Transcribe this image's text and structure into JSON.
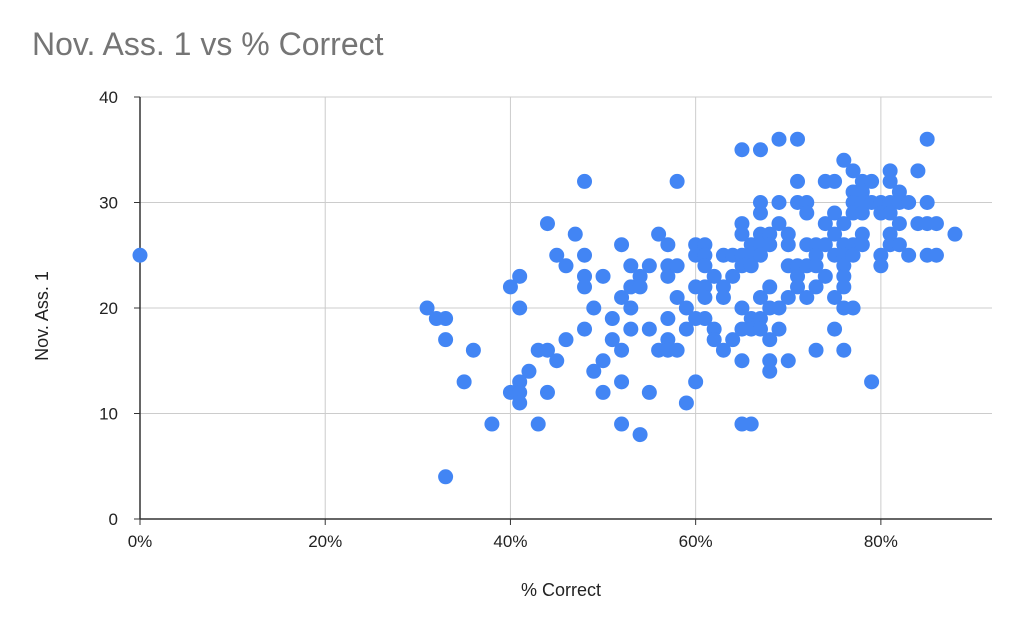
{
  "chart_data": {
    "type": "scatter",
    "title": "Nov. Ass. 1 vs % Correct",
    "xlabel": "% Correct",
    "ylabel": "Nov. Ass. 1",
    "xlim": [
      0,
      0.92
    ],
    "ylim": [
      0,
      40
    ],
    "x_ticks": [
      {
        "value": 0,
        "label": "0%"
      },
      {
        "value": 0.2,
        "label": "20%"
      },
      {
        "value": 0.4,
        "label": "40%"
      },
      {
        "value": 0.6,
        "label": "60%"
      },
      {
        "value": 0.8,
        "label": "80%"
      }
    ],
    "y_ticks": [
      {
        "value": 0,
        "label": "0"
      },
      {
        "value": 10,
        "label": "10"
      },
      {
        "value": 20,
        "label": "20"
      },
      {
        "value": 30,
        "label": "30"
      },
      {
        "value": 40,
        "label": "40"
      }
    ],
    "grid": true,
    "legend": "none",
    "point_color": "#4285f4",
    "points": [
      [
        0,
        25
      ],
      [
        0.31,
        20
      ],
      [
        0.32,
        19
      ],
      [
        0.33,
        19
      ],
      [
        0.33,
        17
      ],
      [
        0.33,
        4
      ],
      [
        0.35,
        13
      ],
      [
        0.36,
        16
      ],
      [
        0.38,
        9
      ],
      [
        0.4,
        22
      ],
      [
        0.4,
        12
      ],
      [
        0.41,
        23
      ],
      [
        0.41,
        20
      ],
      [
        0.41,
        13
      ],
      [
        0.41,
        12
      ],
      [
        0.41,
        11
      ],
      [
        0.42,
        14
      ],
      [
        0.43,
        16
      ],
      [
        0.43,
        9
      ],
      [
        0.44,
        28
      ],
      [
        0.44,
        16
      ],
      [
        0.44,
        12
      ],
      [
        0.45,
        25
      ],
      [
        0.45,
        15
      ],
      [
        0.46,
        24
      ],
      [
        0.46,
        17
      ],
      [
        0.47,
        27
      ],
      [
        0.48,
        32
      ],
      [
        0.48,
        25
      ],
      [
        0.48,
        23
      ],
      [
        0.48,
        22
      ],
      [
        0.48,
        18
      ],
      [
        0.49,
        20
      ],
      [
        0.49,
        14
      ],
      [
        0.5,
        23
      ],
      [
        0.5,
        15
      ],
      [
        0.5,
        12
      ],
      [
        0.51,
        19
      ],
      [
        0.51,
        17
      ],
      [
        0.52,
        26
      ],
      [
        0.52,
        21
      ],
      [
        0.52,
        16
      ],
      [
        0.52,
        13
      ],
      [
        0.52,
        9
      ],
      [
        0.53,
        24
      ],
      [
        0.53,
        22
      ],
      [
        0.53,
        20
      ],
      [
        0.53,
        18
      ],
      [
        0.54,
        23
      ],
      [
        0.54,
        22
      ],
      [
        0.54,
        8
      ],
      [
        0.55,
        24
      ],
      [
        0.55,
        18
      ],
      [
        0.55,
        12
      ],
      [
        0.56,
        27
      ],
      [
        0.56,
        16
      ],
      [
        0.57,
        26
      ],
      [
        0.57,
        24
      ],
      [
        0.57,
        23
      ],
      [
        0.57,
        19
      ],
      [
        0.57,
        17
      ],
      [
        0.57,
        16
      ],
      [
        0.58,
        32
      ],
      [
        0.58,
        24
      ],
      [
        0.58,
        21
      ],
      [
        0.58,
        16
      ],
      [
        0.59,
        20
      ],
      [
        0.59,
        18
      ],
      [
        0.59,
        11
      ],
      [
        0.6,
        26
      ],
      [
        0.6,
        25
      ],
      [
        0.6,
        22
      ],
      [
        0.6,
        19
      ],
      [
        0.6,
        13
      ],
      [
        0.61,
        26
      ],
      [
        0.61,
        25
      ],
      [
        0.61,
        24
      ],
      [
        0.61,
        22
      ],
      [
        0.61,
        21
      ],
      [
        0.61,
        19
      ],
      [
        0.62,
        23
      ],
      [
        0.62,
        18
      ],
      [
        0.62,
        17
      ],
      [
        0.63,
        25
      ],
      [
        0.63,
        22
      ],
      [
        0.63,
        21
      ],
      [
        0.63,
        16
      ],
      [
        0.64,
        25
      ],
      [
        0.64,
        23
      ],
      [
        0.64,
        17
      ],
      [
        0.65,
        35
      ],
      [
        0.65,
        28
      ],
      [
        0.65,
        27
      ],
      [
        0.65,
        25
      ],
      [
        0.65,
        24
      ],
      [
        0.65,
        20
      ],
      [
        0.65,
        18
      ],
      [
        0.65,
        15
      ],
      [
        0.65,
        9
      ],
      [
        0.66,
        26
      ],
      [
        0.66,
        25
      ],
      [
        0.66,
        24
      ],
      [
        0.66,
        19
      ],
      [
        0.66,
        18
      ],
      [
        0.66,
        9
      ],
      [
        0.67,
        35
      ],
      [
        0.67,
        30
      ],
      [
        0.67,
        29
      ],
      [
        0.67,
        27
      ],
      [
        0.67,
        26
      ],
      [
        0.67,
        25
      ],
      [
        0.67,
        21
      ],
      [
        0.67,
        19
      ],
      [
        0.67,
        18
      ],
      [
        0.68,
        27
      ],
      [
        0.68,
        26
      ],
      [
        0.68,
        22
      ],
      [
        0.68,
        20
      ],
      [
        0.68,
        17
      ],
      [
        0.68,
        15
      ],
      [
        0.68,
        14
      ],
      [
        0.69,
        36
      ],
      [
        0.69,
        30
      ],
      [
        0.69,
        28
      ],
      [
        0.69,
        20
      ],
      [
        0.69,
        18
      ],
      [
        0.7,
        27
      ],
      [
        0.7,
        26
      ],
      [
        0.7,
        24
      ],
      [
        0.7,
        21
      ],
      [
        0.7,
        15
      ],
      [
        0.71,
        36
      ],
      [
        0.71,
        32
      ],
      [
        0.71,
        30
      ],
      [
        0.71,
        24
      ],
      [
        0.71,
        23
      ],
      [
        0.71,
        22
      ],
      [
        0.72,
        30
      ],
      [
        0.72,
        29
      ],
      [
        0.72,
        26
      ],
      [
        0.72,
        24
      ],
      [
        0.72,
        21
      ],
      [
        0.73,
        26
      ],
      [
        0.73,
        25
      ],
      [
        0.73,
        24
      ],
      [
        0.73,
        22
      ],
      [
        0.73,
        16
      ],
      [
        0.74,
        32
      ],
      [
        0.74,
        28
      ],
      [
        0.74,
        26
      ],
      [
        0.74,
        23
      ],
      [
        0.75,
        32
      ],
      [
        0.75,
        29
      ],
      [
        0.75,
        27
      ],
      [
        0.75,
        25
      ],
      [
        0.75,
        21
      ],
      [
        0.75,
        18
      ],
      [
        0.76,
        34
      ],
      [
        0.76,
        28
      ],
      [
        0.76,
        26
      ],
      [
        0.76,
        25
      ],
      [
        0.76,
        24
      ],
      [
        0.76,
        23
      ],
      [
        0.76,
        22
      ],
      [
        0.76,
        20
      ],
      [
        0.76,
        16
      ],
      [
        0.77,
        33
      ],
      [
        0.77,
        31
      ],
      [
        0.77,
        30
      ],
      [
        0.77,
        29
      ],
      [
        0.77,
        26
      ],
      [
        0.77,
        25
      ],
      [
        0.77,
        20
      ],
      [
        0.78,
        32
      ],
      [
        0.78,
        31
      ],
      [
        0.78,
        30
      ],
      [
        0.78,
        29
      ],
      [
        0.78,
        27
      ],
      [
        0.78,
        26
      ],
      [
        0.79,
        32
      ],
      [
        0.79,
        30
      ],
      [
        0.79,
        13
      ],
      [
        0.8,
        30
      ],
      [
        0.8,
        29
      ],
      [
        0.8,
        25
      ],
      [
        0.8,
        24
      ],
      [
        0.81,
        33
      ],
      [
        0.81,
        32
      ],
      [
        0.81,
        30
      ],
      [
        0.81,
        29
      ],
      [
        0.81,
        27
      ],
      [
        0.81,
        26
      ],
      [
        0.82,
        31
      ],
      [
        0.82,
        30
      ],
      [
        0.82,
        28
      ],
      [
        0.82,
        26
      ],
      [
        0.83,
        30
      ],
      [
        0.83,
        25
      ],
      [
        0.84,
        33
      ],
      [
        0.84,
        28
      ],
      [
        0.85,
        36
      ],
      [
        0.85,
        30
      ],
      [
        0.85,
        28
      ],
      [
        0.85,
        25
      ],
      [
        0.86,
        28
      ],
      [
        0.86,
        25
      ],
      [
        0.88,
        27
      ]
    ]
  }
}
